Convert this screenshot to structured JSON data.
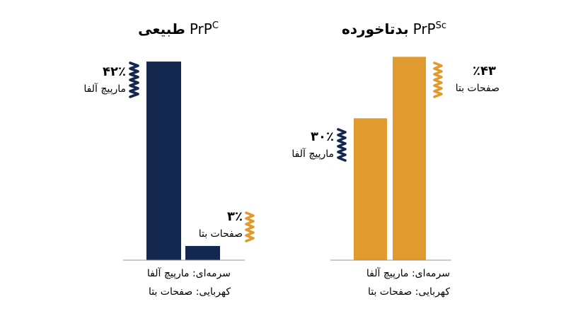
{
  "chart_data": [
    {
      "type": "bar",
      "title_name": "طبیعی",
      "title_base": "PrP",
      "title_sup": "C",
      "ylim": [
        0,
        45
      ],
      "bar_color": "#13274f",
      "bars": [
        {
          "value": 42,
          "value_label": "۴۲٪",
          "label": "مارپیچ آلفا",
          "icon": "alpha-helix-icon"
        },
        {
          "value": 3,
          "value_label": "۳٪",
          "label": "صفحات بتا",
          "icon": "beta-sheet-icon"
        }
      ],
      "legend": [
        "سرمه‌ای: مارپیچ آلفا",
        "کهربایی: صفحات بتا"
      ]
    },
    {
      "type": "bar",
      "title_name": "بدتاخورده",
      "title_base": "PrP",
      "title_sup": "Sc",
      "ylim": [
        0,
        45
      ],
      "bar_color": "#e09a2d",
      "bars": [
        {
          "value": 30,
          "value_label": "۳۰٪",
          "label": "مارپیچ آلفا",
          "icon": "alpha-helix-icon"
        },
        {
          "value": 43,
          "value_label": "٪۴۳",
          "label": "صفحات بتا",
          "icon": "beta-sheet-icon"
        }
      ],
      "legend": [
        "سرمه‌ای: مارپیچ آلفا",
        "کهربایی: صفحات بتا"
      ]
    }
  ]
}
